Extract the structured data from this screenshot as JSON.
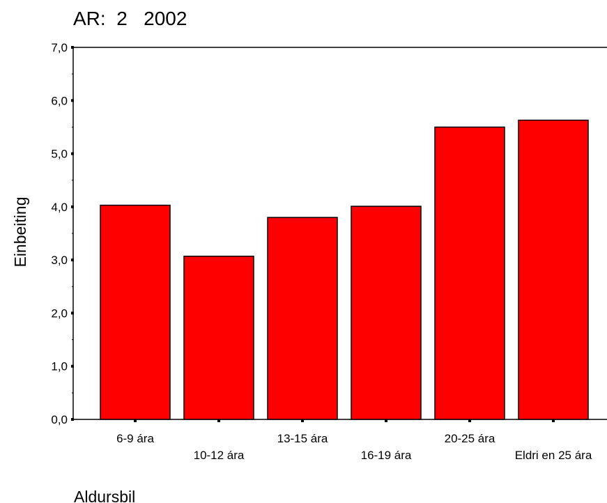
{
  "chart_data": {
    "type": "bar",
    "title": "AR:  2   2002",
    "xlabel": "Aldursbil",
    "ylabel": "Einbeiting",
    "categories": [
      "6-9 ára",
      "10-12 ára",
      "13-15 ára",
      "16-19 ára",
      "20-25 ára",
      "Eldri en 25 ára"
    ],
    "values": [
      4.03,
      3.07,
      3.8,
      4.01,
      5.5,
      5.63
    ],
    "ylim": [
      0,
      7
    ],
    "yticks": [
      "0,0",
      "1,0",
      "2,0",
      "3,0",
      "4,0",
      "5,0",
      "6,0",
      "7,0"
    ],
    "grid": false,
    "legend": "none",
    "bar_color": "#ff0000",
    "bar_stroke": "#000000"
  }
}
